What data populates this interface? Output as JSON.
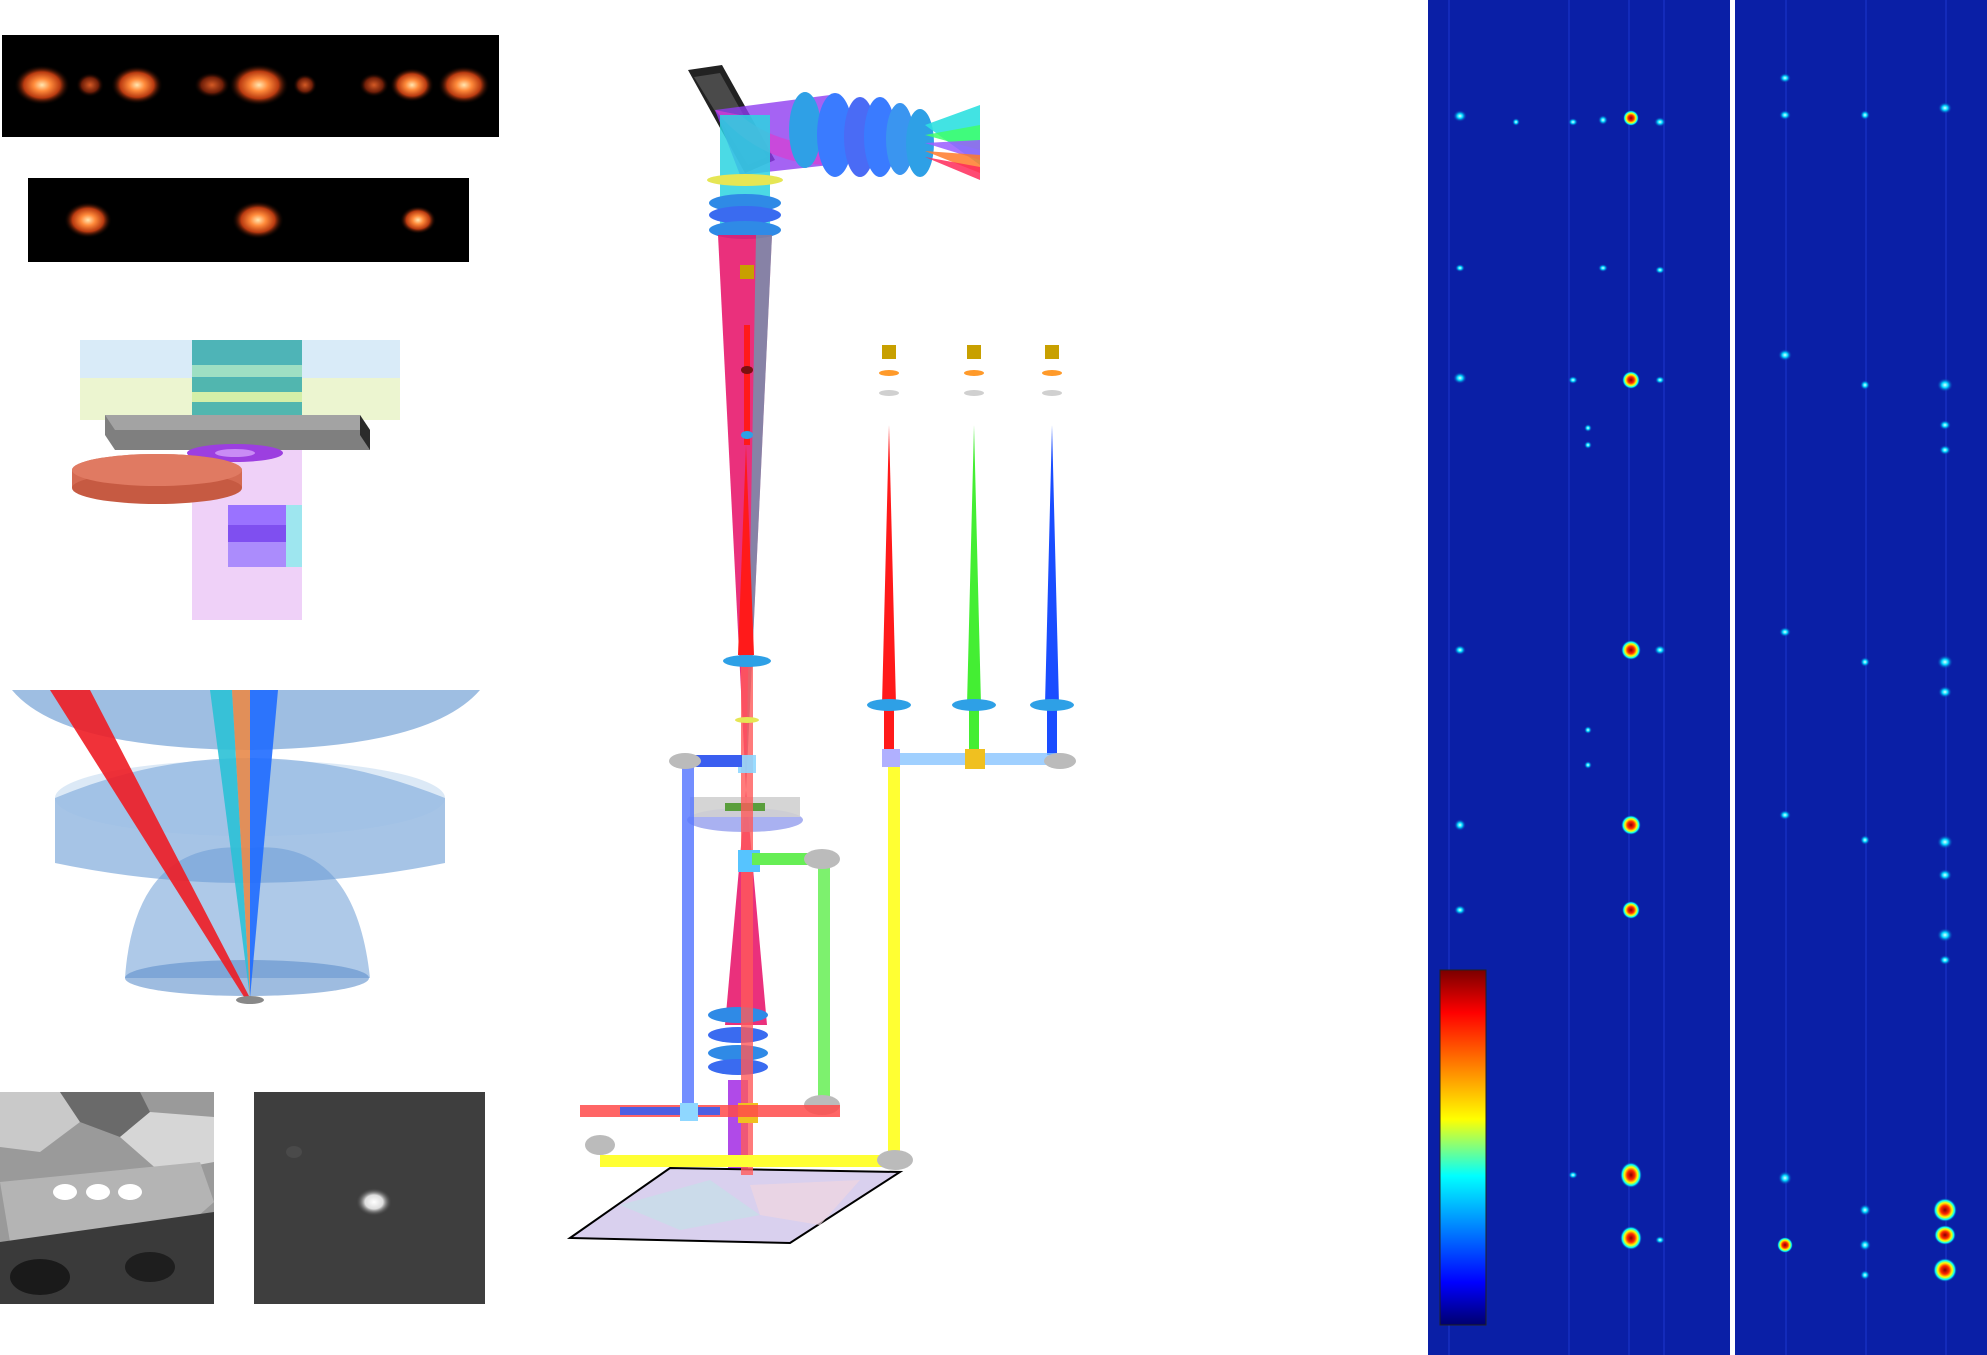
{
  "figure": {
    "panels": [
      {
        "id": "pl-spots-5",
        "kind": "photoluminescence image strip",
        "spot_count": 5
      },
      {
        "id": "pl-spots-3",
        "kind": "photoluminescence image strip",
        "spot_count": 3
      },
      {
        "id": "sample-stack",
        "kind": "3D sample stack schematic"
      },
      {
        "id": "objective-focus",
        "kind": "objective lens focusing schematic"
      },
      {
        "id": "optical-setup",
        "kind": "optical setup schematic"
      },
      {
        "id": "spectral-map-left",
        "kind": "spectral intensity map"
      },
      {
        "id": "spectral-map-right",
        "kind": "spectral intensity map"
      },
      {
        "id": "microscope-image",
        "kind": "grayscale microscope image"
      },
      {
        "id": "single-spot-image",
        "kind": "grayscale spot image"
      }
    ],
    "colors": {
      "beam_red": "#ff1a1a",
      "beam_green": "#44ee33",
      "beam_blue": "#1a4dff",
      "beam_yellow": "#ffff33",
      "beam_magenta": "#e8196e",
      "beam_cyan": "#22d3e6",
      "map_background": "#0a1fa6",
      "colormap": [
        "#7a0000",
        "#ff0000",
        "#ff8800",
        "#ffff00",
        "#00ffff",
        "#0088ff",
        "#0000ff",
        "#00006e"
      ]
    }
  }
}
